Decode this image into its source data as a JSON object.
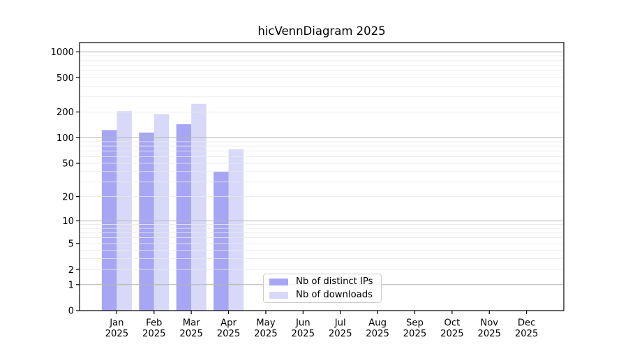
{
  "chart_data": {
    "type": "bar",
    "title": "hicVennDiagram 2025",
    "categories": [
      "Jan",
      "Feb",
      "Mar",
      "Apr",
      "May",
      "Jun",
      "Jul",
      "Aug",
      "Sep",
      "Oct",
      "Nov",
      "Dec"
    ],
    "category_year_line": "2025",
    "series": [
      {
        "name": "Nb of distinct IPs",
        "color": "#a6a6f4",
        "values": [
          123,
          115,
          144,
          40,
          null,
          null,
          null,
          null,
          null,
          null,
          null,
          null
        ]
      },
      {
        "name": "Nb of downloads",
        "color": "#d8d8f8",
        "values": [
          205,
          189,
          249,
          73,
          null,
          null,
          null,
          null,
          null,
          null,
          null,
          null
        ]
      }
    ],
    "xlabel": "",
    "ylabel": "",
    "y_axis": {
      "scale": "log1p",
      "ticks": [
        0,
        1,
        2,
        5,
        10,
        20,
        50,
        100,
        200,
        500,
        1000
      ],
      "range": [
        0,
        1280
      ]
    },
    "grid": {
      "on": true,
      "major_color": "#b3b3b3",
      "minor_color": "#e9e9e9"
    },
    "legend": {
      "position": "lower-center",
      "entries": [
        "Nb of distinct IPs",
        "Nb of downloads"
      ]
    },
    "colors": {
      "spine": "#000000",
      "text": "#000000",
      "background": "#ffffff"
    }
  }
}
